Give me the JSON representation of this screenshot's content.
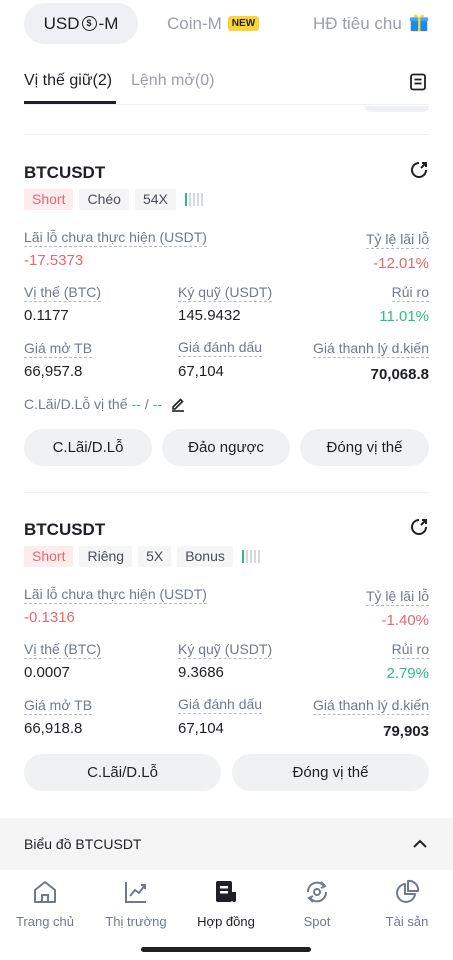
{
  "top_tabs": {
    "usd_m_prefix": "USD",
    "usd_m_suffix": "-M",
    "coin_m": "Coin-M",
    "new_badge": "NEW",
    "hd": "HĐ tiêu chu"
  },
  "sub_tabs": {
    "positions": "Vị thế giữ(2)",
    "open_orders": "Lệnh mở(0)"
  },
  "labels": {
    "unrealized_pnl": "Lãi lỗ chưa thực hiện (USDT)",
    "roe": "Tỷ lệ lãi lỗ",
    "size": "Vị thế (BTC)",
    "margin": "Ký quỹ (USDT)",
    "risk": "Rủi ro",
    "entry_price": "Giá mở TB",
    "mark_price": "Giá đánh dấu",
    "liq_price": "Giá thanh lý d.kiến",
    "tpsl_position": "C.Lãi/D.Lỗ vị thế"
  },
  "positions": [
    {
      "symbol": "BTCUSDT",
      "tags": [
        "Short",
        "Chéo",
        "54X"
      ],
      "risk_bars_on": 1,
      "pnl": "-17.5373",
      "roe": "-12.01%",
      "size": "0.1177",
      "margin": "145.9432",
      "risk": "11.01%",
      "entry": "66,957.8",
      "mark": "67,104",
      "liq": "70,068.8",
      "tpsl_tp": "--",
      "tpsl_sep": "/",
      "tpsl_sl": "--",
      "buttons": [
        "C.Lãi/D.Lỗ",
        "Đảo ngược",
        "Đóng vị thế"
      ]
    },
    {
      "symbol": "BTCUSDT",
      "tags": [
        "Short",
        "Riêng",
        "5X",
        "Bonus"
      ],
      "risk_bars_on": 1,
      "pnl": "-0.1316",
      "roe": "-1.40%",
      "size": "0.0007",
      "margin": "9.3686",
      "risk": "2.79%",
      "entry": "66,918.8",
      "mark": "67,104",
      "liq": "79,903",
      "buttons": [
        "C.Lãi/D.Lỗ",
        "Đóng vị thế"
      ]
    }
  ],
  "chart_section": {
    "title": "Biểu đồ BTCUSDT"
  },
  "bottom_nav": [
    {
      "label": "Trang chủ",
      "icon": "home-icon"
    },
    {
      "label": "Thị trường",
      "icon": "market-chart-icon"
    },
    {
      "label": "Hợp đồng",
      "icon": "futures-icon",
      "active": true
    },
    {
      "label": "Spot",
      "icon": "spot-icon"
    },
    {
      "label": "Tài sản",
      "icon": "assets-pie-icon"
    }
  ],
  "colors": {
    "red": "#e5686e",
    "green": "#2ebd85",
    "yellow": "#fcd535",
    "text": "#1e2026",
    "muted": "#707a8a"
  }
}
